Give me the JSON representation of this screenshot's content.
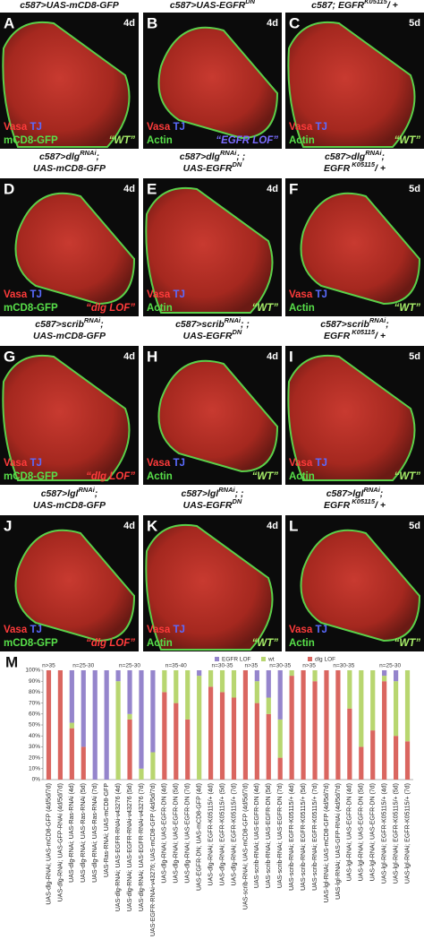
{
  "panels": [
    {
      "letter": "A",
      "header": [
        [
          {
            "text": "c587>UAS-mCD8-GFP"
          }
        ]
      ],
      "day": "4d",
      "stain1": "Vasa",
      "stain2": "TJ",
      "stain3": "mCD8-GFP",
      "note": "“WT”"
    },
    {
      "letter": "B",
      "header": [
        [
          {
            "text": "c587>UAS-EGFR"
          },
          {
            "text": "DN",
            "sup": true
          }
        ]
      ],
      "day": "4d",
      "stain1": "Vasa",
      "stain2": "TJ",
      "stain3": "Actin",
      "note": "“EGFR LOF”"
    },
    {
      "letter": "C",
      "header": [
        [
          {
            "text": "c587; EGFR"
          },
          {
            "text": "K05115",
            "sup": true
          },
          {
            "text": "/ +"
          }
        ]
      ],
      "day": "5d",
      "stain1": "Vasa",
      "stain2": "TJ",
      "stain3": "Actin",
      "note": "“WT”"
    },
    {
      "letter": "D",
      "header": [
        [
          {
            "text": "c587>dlg"
          },
          {
            "text": "RNAi",
            "sup": true
          },
          {
            "text": ";"
          }
        ],
        [
          {
            "text": "UAS-mCD8-GFP"
          }
        ]
      ],
      "day": "4d",
      "stain1": "Vasa",
      "stain2": "TJ",
      "stain3": "mCD8-GFP",
      "note": "“dlg LOF”"
    },
    {
      "letter": "E",
      "header": [
        [
          {
            "text": "c587>dlg"
          },
          {
            "text": "RNAi",
            "sup": true
          },
          {
            "text": "; ;"
          }
        ],
        [
          {
            "text": "UAS-EGFR"
          },
          {
            "text": "DN",
            "sup": true
          }
        ]
      ],
      "day": "4d",
      "stain1": "Vasa",
      "stain2": "TJ",
      "stain3": "Actin",
      "note": "“WT”"
    },
    {
      "letter": "F",
      "header": [
        [
          {
            "text": "c587>dlg"
          },
          {
            "text": "RNAi",
            "sup": true
          },
          {
            "text": ";"
          }
        ],
        [
          {
            "text": "EGFR"
          },
          {
            "text": " K05115",
            "sup": true
          },
          {
            "text": "/ +"
          }
        ]
      ],
      "day": "5d",
      "stain1": "Vasa",
      "stain2": "TJ",
      "stain3": "Actin",
      "note": "“WT”"
    },
    {
      "letter": "G",
      "header": [
        [
          {
            "text": "c587>scrib"
          },
          {
            "text": "RNAi",
            "sup": true
          },
          {
            "text": ";"
          }
        ],
        [
          {
            "text": "UAS-mCD8-GFP"
          }
        ]
      ],
      "day": "4d",
      "stain1": "Vasa",
      "stain2": "TJ",
      "stain3": "mCD8-GFP",
      "note": "“dlg LOF”"
    },
    {
      "letter": "H",
      "header": [
        [
          {
            "text": "c587>scrib"
          },
          {
            "text": "RNAi",
            "sup": true
          },
          {
            "text": "; ;"
          }
        ],
        [
          {
            "text": "UAS-EGFR"
          },
          {
            "text": "DN",
            "sup": true
          }
        ]
      ],
      "day": "4d",
      "stain1": "Vasa",
      "stain2": "TJ",
      "stain3": "Actin",
      "note": "“WT”"
    },
    {
      "letter": "I",
      "header": [
        [
          {
            "text": "c587>scrib"
          },
          {
            "text": "RNAi",
            "sup": true
          },
          {
            "text": ";"
          }
        ],
        [
          {
            "text": "EGFR"
          },
          {
            "text": " K05115",
            "sup": true
          },
          {
            "text": "/ +"
          }
        ]
      ],
      "day": "5d",
      "stain1": "Vasa",
      "stain2": "TJ",
      "stain3": "Actin",
      "note": "“WT”"
    },
    {
      "letter": "J",
      "header": [
        [
          {
            "text": "c587>lgl"
          },
          {
            "text": "RNAi",
            "sup": true
          },
          {
            "text": ";"
          }
        ],
        [
          {
            "text": "UAS-mCD8-GFP"
          }
        ]
      ],
      "day": "4d",
      "stain1": "Vasa",
      "stain2": "TJ",
      "stain3": "mCD8-GFP",
      "note": "“dlg LOF”"
    },
    {
      "letter": "K",
      "header": [
        [
          {
            "text": "c587>lgl"
          },
          {
            "text": "RNAi",
            "sup": true
          },
          {
            "text": "; ;"
          }
        ],
        [
          {
            "text": "UAS-EGFR"
          },
          {
            "text": "DN",
            "sup": true
          }
        ]
      ],
      "day": "4d",
      "stain1": "Vasa",
      "stain2": "TJ",
      "stain3": "Actin",
      "note": "“WT”"
    },
    {
      "letter": "L",
      "header": [
        [
          {
            "text": "c587>lgl"
          },
          {
            "text": "RNAi",
            "sup": true
          },
          {
            "text": ";"
          }
        ],
        [
          {
            "text": "EGFR"
          },
          {
            "text": " K05115",
            "sup": true
          },
          {
            "text": "/ +"
          }
        ]
      ],
      "day": "5d",
      "stain1": "Vasa",
      "stain2": "TJ",
      "stain3": "Actin",
      "note": "“WT”"
    }
  ],
  "panel_m_label": "M",
  "chart_data": {
    "type": "bar",
    "stacked": true,
    "categories": [
      "UAS-dlg-RNAi; UAS-mCD8-GFP (4d/5d/7d)",
      "UAS-dlg-RNAi; UAS-GFP-RNAi (4d/5d/7d)",
      "UAS-dlg-RNAi; UAS-Ras-RNAi (4d)",
      "UAS-dlg-RNAi; UAS-Ras-RNAi (5d)",
      "UAS-dlg-RNAi; UAS-Ras-RNAi (7d)",
      "UAS-Ras-RNAi; UAS-mCD8-GFP",
      "UAS-dlg-RNAi; UAS-EGFR-RNAi-v43276 (4d)",
      "UAS-dlg-RNAi; UAS-EGFR-RNAi-v43276 (5d)",
      "UAS-dlg-RNAi; UAS-EGFR-RNAi-v43276 (7d)",
      "UAS-EGFR-RNAi-v43276; UAS-mCD8-GFP (4d/5d/7d)",
      "UAS-dlg-RNAi; UAS-EGFR-DN (4d)",
      "UAS-dlg-RNAi; UAS-EGFR-DN (5d)",
      "UAS-dlg-RNAi; UAS-EGFR-DN (7d)",
      "UAS-EGFR-DN; UAS-mCD8-GFP (4d)",
      "UAS-dlg-RNAi; EGFR-K05115/+ (4d)",
      "UAS-dlg-RNAi; EGFR-K05115/+ (5d)",
      "UAS-dlg-RNAi; EGFR-K05115/+ (7d)",
      "UAS-scrib-RNAi; UAS-mCD8-GFP (4d/5d/7d)",
      "UAS-scrib-RNAi; UAS-EGFR-DN (4d)",
      "UAS-scrib-RNAi; UAS-EGFR-DN (5d)",
      "UAS-scrib-RNAi; UAS-EGFR-DN (7d)",
      "UAS-scrib-RNAi; EGFR-K05115/+ (4d)",
      "UAS-scrib-RNAi; EGFR-K05115/+ (5d)",
      "UAS-scrib-RNAi; EGFR-K05115/+ (7d)",
      "UAS-lgl-RNAi; UAS-mCD8-GFP (4d/5d/7d)",
      "UAS-lgl-RNAi; UAS-GFP-RNAi (4d/5d/7d)",
      "UAS-lgl-RNAi; UAS-EGFR-DN (4d)",
      "UAS-lgl-RNAi; UAS-EGFR-DN (5d)",
      "UAS-lgl-RNAi; UAS-EGFR-DN (7d)",
      "UAS-lgl-RNAi; EGFR-K05115/+ (4d)",
      "UAS-lgl-RNAi; EGFR-K05115/+ (5d)",
      "UAS-lgl-RNAi; EGFR-K05115/+ (7d)"
    ],
    "series": [
      {
        "name": "EGFR LOF",
        "color": "#9585cc",
        "values": [
          0,
          0,
          48,
          70,
          100,
          100,
          10,
          40,
          90,
          75,
          0,
          0,
          0,
          5,
          0,
          0,
          0,
          0,
          10,
          25,
          45,
          0,
          0,
          0,
          0,
          0,
          0,
          0,
          0,
          5,
          10,
          0
        ]
      },
      {
        "name": "wt",
        "color": "#b8d670",
        "values": [
          0,
          0,
          5,
          0,
          0,
          0,
          90,
          5,
          10,
          25,
          20,
          30,
          45,
          95,
          15,
          20,
          25,
          0,
          20,
          15,
          35,
          5,
          0,
          10,
          0,
          0,
          35,
          70,
          55,
          5,
          50,
          65
        ]
      },
      {
        "name": "dlg LOF",
        "color": "#da6660",
        "values": [
          100,
          100,
          47,
          30,
          0,
          0,
          0,
          55,
          0,
          0,
          80,
          70,
          55,
          0,
          85,
          80,
          75,
          100,
          70,
          60,
          20,
          95,
          100,
          90,
          100,
          100,
          65,
          30,
          45,
          90,
          40,
          35
        ]
      }
    ],
    "annotations": [
      "n>35",
      "n=25-30",
      "n=25-30",
      "n=35-40",
      "n=30-35",
      "n>35",
      "n=30-35",
      "n>35",
      "n=30-35",
      "n=25-30"
    ],
    "ylim": [
      0,
      100
    ],
    "yticks": [
      {
        "value": 0,
        "label": "0%"
      },
      {
        "value": 10,
        "label": "10%"
      },
      {
        "value": 20,
        "label": "20%"
      },
      {
        "value": 30,
        "label": "30%"
      },
      {
        "value": 40,
        "label": "40%"
      },
      {
        "value": 50,
        "label": "50%"
      },
      {
        "value": 60,
        "label": "60%"
      },
      {
        "value": 70,
        "label": "70%"
      },
      {
        "value": 80,
        "label": "80%"
      },
      {
        "value": 90,
        "label": "90%"
      },
      {
        "value": 100,
        "label": "100%"
      }
    ],
    "legend": "top"
  }
}
